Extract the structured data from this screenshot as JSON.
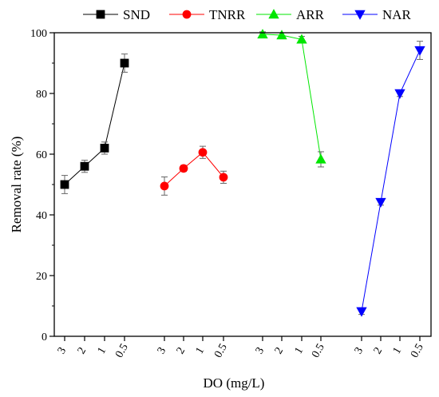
{
  "chart_data": {
    "type": "line",
    "xlabel": "DO (mg/L)",
    "ylabel": "Removal rate (%)",
    "ylim": [
      0,
      100
    ],
    "yticks": [
      0,
      20,
      40,
      60,
      80,
      100
    ],
    "grid": false,
    "legend_position": "top",
    "series": [
      {
        "name": "SND",
        "color": "#000000",
        "marker": "square",
        "categories": [
          "3",
          "2",
          "1",
          "0.5"
        ],
        "values": [
          50,
          56,
          62,
          90
        ],
        "errors": [
          3,
          2,
          2,
          3
        ]
      },
      {
        "name": "TNRR",
        "color": "#ff0000",
        "marker": "circle",
        "categories": [
          "3",
          "2",
          "1",
          "0.5"
        ],
        "values": [
          49.5,
          55.3,
          60.6,
          52.4
        ],
        "errors": [
          3,
          1,
          2,
          2
        ]
      },
      {
        "name": "ARR",
        "color": "#00e600",
        "marker": "triangle-up",
        "categories": [
          "3",
          "2",
          "1",
          "0.5"
        ],
        "values": [
          99.5,
          99.2,
          97.8,
          58.3
        ],
        "errors": [
          0.8,
          0.8,
          1,
          2.5
        ]
      },
      {
        "name": "NAR",
        "color": "#0000ff",
        "marker": "triangle-down",
        "categories": [
          "3",
          "2",
          "1",
          "0.5"
        ],
        "values": [
          8.2,
          44.2,
          80,
          94.2
        ],
        "errors": [
          1,
          1,
          1,
          3
        ]
      }
    ]
  }
}
